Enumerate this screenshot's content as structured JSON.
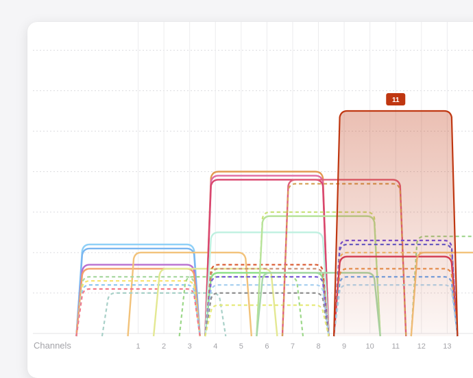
{
  "chart_data": {
    "type": "area",
    "xlabel": "Channels",
    "ylabel": "",
    "categories": [
      "1",
      "2",
      "3",
      "4",
      "5",
      "6",
      "7",
      "8",
      "9",
      "10",
      "11",
      "12",
      "13"
    ],
    "xlim": [
      -3.3,
      14.8
    ],
    "ylim": [
      0,
      7.7
    ],
    "grid": true,
    "highlight": {
      "label": "11",
      "color": "#bf3711"
    },
    "series": [
      {
        "channel": 11,
        "level": 5.5,
        "color": "#bf3711",
        "dashed": false,
        "highlighted": true
      },
      {
        "channel": 1,
        "level": 2.2,
        "color": "#8fd0f7",
        "dashed": false
      },
      {
        "channel": 1,
        "level": 2.1,
        "color": "#7ab6f0",
        "dashed": false
      },
      {
        "channel": 1,
        "level": 1.7,
        "color": "#b86fd0",
        "dashed": false
      },
      {
        "channel": 1,
        "level": 1.6,
        "color": "#f4a06a",
        "dashed": false
      },
      {
        "channel": 3,
        "level": 2.0,
        "color": "#f2c27a",
        "dashed": false
      },
      {
        "channel": 1,
        "level": 1.4,
        "color": "#a8d8a0",
        "dashed": true
      },
      {
        "channel": 1,
        "level": 1.3,
        "color": "#f7e36e",
        "dashed": true
      },
      {
        "channel": 1,
        "level": 1.2,
        "color": "#90c8f0",
        "dashed": true
      },
      {
        "channel": 1,
        "level": 1.1,
        "color": "#f27a8a",
        "dashed": true
      },
      {
        "channel": 2,
        "level": 1.0,
        "color": "#a8d0c8",
        "dashed": true
      },
      {
        "channel": 4,
        "level": 1.6,
        "color": "#e3e892",
        "dashed": false
      },
      {
        "channel": 5,
        "level": 1.4,
        "color": "#9dd88a",
        "dashed": true
      },
      {
        "channel": 6,
        "level": 1.5,
        "color": "#8fe08a",
        "dashed": false
      },
      {
        "channel": 6,
        "level": 4.0,
        "color": "#e39a52",
        "dashed": false
      },
      {
        "channel": 6,
        "level": 3.9,
        "color": "#e06aa2",
        "dashed": false
      },
      {
        "channel": 6,
        "level": 3.8,
        "color": "#d9466e",
        "dashed": false
      },
      {
        "channel": 6,
        "level": 2.5,
        "color": "#bff0e0",
        "dashed": false
      },
      {
        "channel": 6,
        "level": 1.7,
        "color": "#d9572e",
        "dashed": true
      },
      {
        "channel": 6,
        "level": 1.6,
        "color": "#c88a6e",
        "dashed": true
      },
      {
        "channel": 6,
        "level": 1.4,
        "color": "#7a5cd8",
        "dashed": true
      },
      {
        "channel": 6,
        "level": 1.2,
        "color": "#a8d0f0",
        "dashed": true
      },
      {
        "channel": 6,
        "level": 1.0,
        "color": "#909090",
        "dashed": true
      },
      {
        "channel": 6,
        "level": 0.7,
        "color": "#e6ea7a",
        "dashed": true
      },
      {
        "channel": 8,
        "level": 3.0,
        "color": "#c9e27a",
        "dashed": true
      },
      {
        "channel": 8,
        "level": 2.9,
        "color": "#b7e39a",
        "dashed": false
      },
      {
        "channel": 9,
        "level": 3.8,
        "color": "#e0607a",
        "dashed": false
      },
      {
        "channel": 9,
        "level": 3.7,
        "color": "#d6a25a",
        "dashed": true
      },
      {
        "channel": 8,
        "level": 1.5,
        "color": "#a8d8a8",
        "dashed": false
      },
      {
        "channel": 11,
        "level": 2.3,
        "color": "#6a4ee6",
        "dashed": true
      },
      {
        "channel": 11,
        "level": 2.2,
        "color": "#5860e0",
        "dashed": true
      },
      {
        "channel": 11,
        "level": 2.0,
        "color": "#f2c270",
        "dashed": true
      },
      {
        "channel": 11,
        "level": 1.9,
        "color": "#d63a5a",
        "dashed": false
      },
      {
        "channel": 11,
        "level": 1.6,
        "color": "#e8944e",
        "dashed": true
      },
      {
        "channel": 11,
        "level": 1.4,
        "color": "#6aa8f0",
        "dashed": true
      },
      {
        "channel": 11,
        "level": 1.2,
        "color": "#b0d8f0",
        "dashed": true
      },
      {
        "channel": 14,
        "level": 2.4,
        "color": "#9ed48a",
        "dashed": true
      },
      {
        "channel": 14,
        "level": 2.0,
        "color": "#f2c27a",
        "dashed": false
      }
    ]
  }
}
